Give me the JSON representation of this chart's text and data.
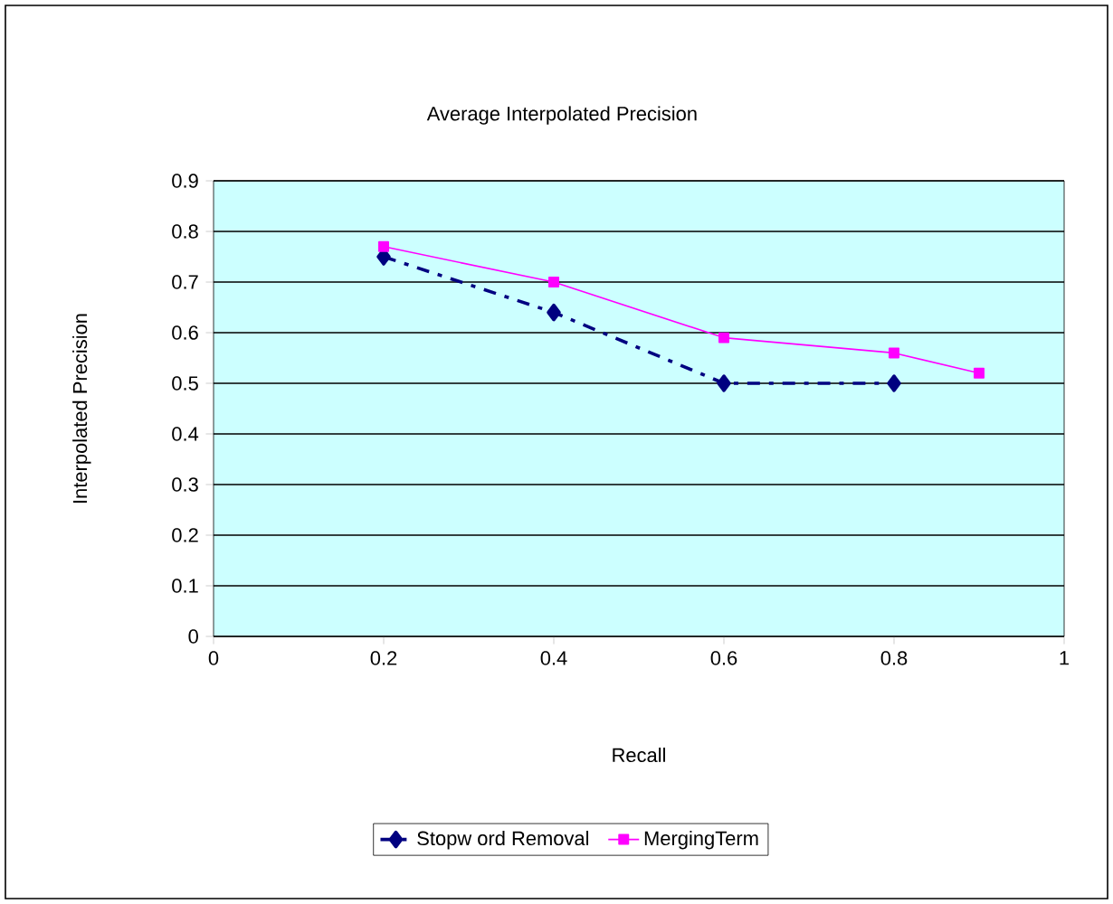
{
  "chart_data": {
    "type": "line",
    "title": "Average Interpolated Precision",
    "xlabel": "Recall",
    "ylabel": "Interpolated Precision",
    "xlim": [
      0,
      1
    ],
    "xticks": [
      0,
      0.2,
      0.4,
      0.6,
      0.8,
      1
    ],
    "ylim": [
      0,
      0.9
    ],
    "yticks": [
      0,
      0.1,
      0.2,
      0.3,
      0.4,
      0.5,
      0.6,
      0.7,
      0.8,
      0.9
    ],
    "grid": "y",
    "legend": "bottom",
    "series": [
      {
        "name": "Stopw ord Removal",
        "color": "#000080",
        "x": [
          0.2,
          0.4,
          0.6,
          0.8
        ],
        "values": [
          0.75,
          0.64,
          0.5,
          0.5
        ],
        "marker": "diamond",
        "line_style": "dashed"
      },
      {
        "name": "MergingTerm",
        "color": "#ff00ff",
        "x": [
          0.2,
          0.4,
          0.6,
          0.8,
          0.9
        ],
        "values": [
          0.77,
          0.7,
          0.59,
          0.56,
          0.52
        ],
        "marker": "square",
        "line_style": "solid"
      }
    ]
  }
}
